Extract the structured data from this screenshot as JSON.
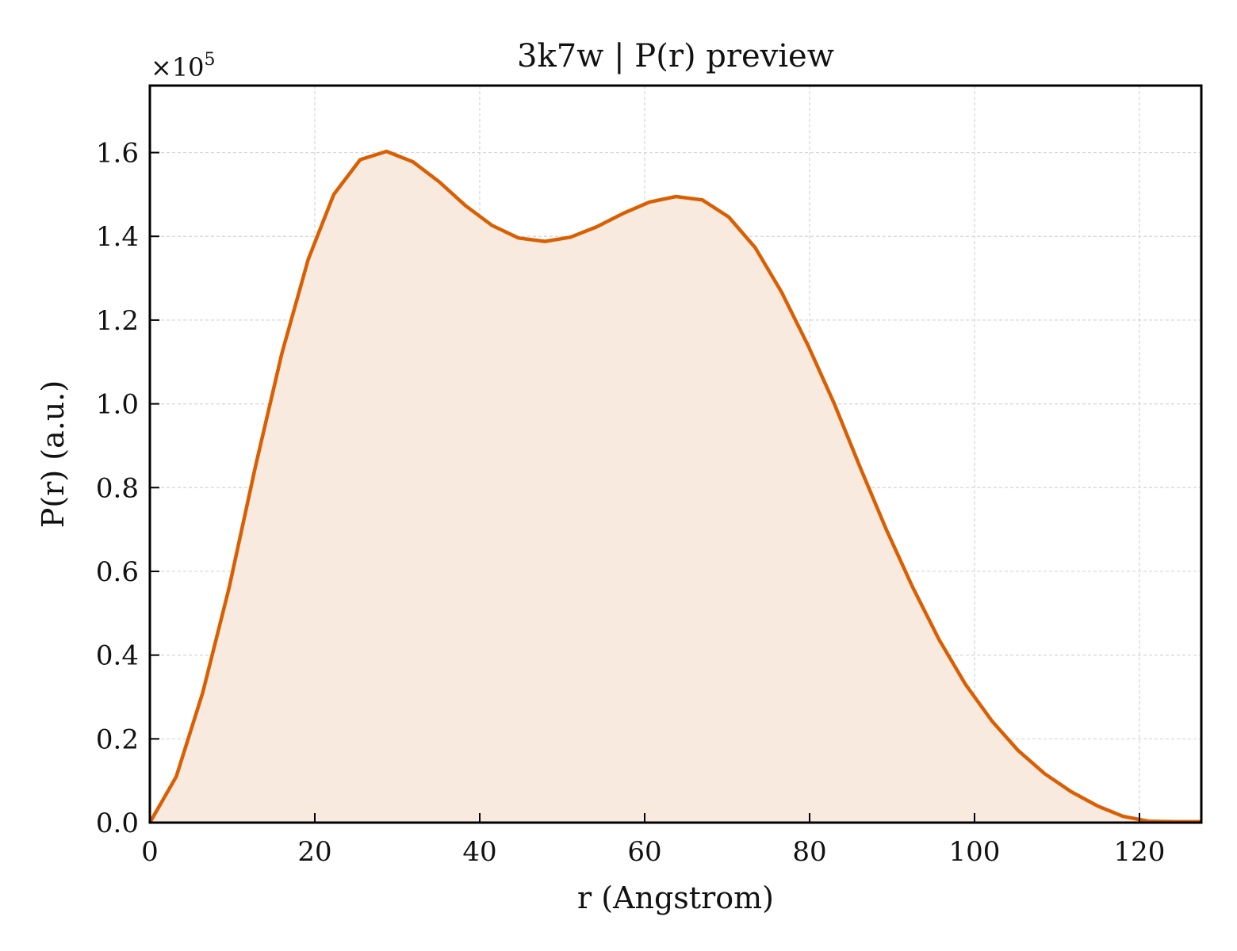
{
  "chart_data": {
    "type": "area",
    "title": "3k7w | P(r) preview",
    "xlabel": "r (Angstrom)",
    "ylabel": "P(r) (a.u.)",
    "y_offset_label": "×10",
    "y_offset_exponent": "5",
    "xlim": [
      0,
      127.5
    ],
    "ylim": [
      0,
      1.76
    ],
    "xticks": [
      0,
      20,
      40,
      60,
      80,
      100,
      120
    ],
    "xtick_labels": [
      "0",
      "20",
      "40",
      "60",
      "80",
      "100",
      "120"
    ],
    "yticks": [
      0.0,
      0.2,
      0.4,
      0.6,
      0.8,
      1.0,
      1.2,
      1.4,
      1.6
    ],
    "ytick_labels": [
      "0.0",
      "0.2",
      "0.4",
      "0.6",
      "0.8",
      "1.0",
      "1.2",
      "1.4",
      "1.6"
    ],
    "grid": true,
    "line_color": "#d95f02",
    "fill_color": "#f9eae0",
    "series": [
      {
        "x": [
          0,
          3.2,
          6.4,
          9.6,
          12.8,
          16.0,
          19.2,
          22.3,
          25.5,
          28.7,
          31.9,
          35.1,
          38.3,
          41.5,
          44.7,
          47.9,
          51.0,
          54.2,
          57.4,
          60.6,
          63.8,
          67.0,
          70.2,
          73.4,
          76.6,
          79.8,
          83.0,
          86.1,
          89.3,
          92.5,
          95.7,
          98.9,
          102.1,
          105.3,
          108.5,
          111.7,
          114.9,
          118.0,
          121.2,
          124.4,
          127.5
        ],
        "y": [
          0.0,
          0.11,
          0.31,
          0.56,
          0.85,
          1.12,
          1.345,
          1.5,
          1.583,
          1.603,
          1.578,
          1.53,
          1.473,
          1.426,
          1.396,
          1.388,
          1.398,
          1.423,
          1.455,
          1.482,
          1.495,
          1.487,
          1.446,
          1.373,
          1.267,
          1.14,
          1.0,
          0.85,
          0.7,
          0.562,
          0.437,
          0.33,
          0.243,
          0.172,
          0.117,
          0.074,
          0.04,
          0.015,
          0.003,
          0.002,
          0.002
        ]
      }
    ]
  }
}
